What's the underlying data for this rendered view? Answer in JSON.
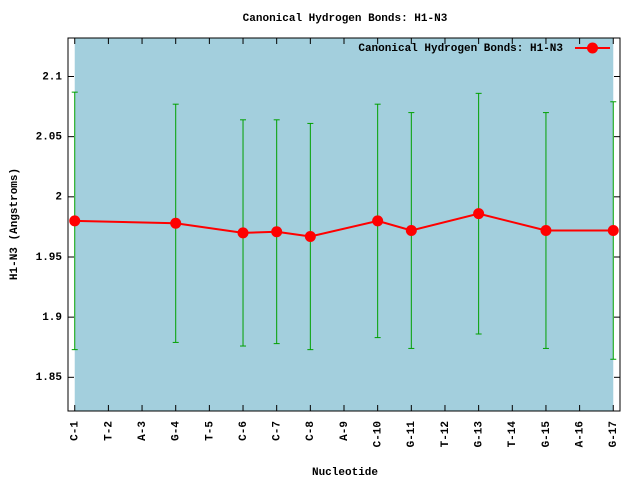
{
  "chart_data": {
    "type": "line",
    "title": "Canonical Hydrogen Bonds: H1-N3",
    "x_label": "Nucleotide",
    "y_label": "H1-N3 (Angstroms)",
    "xlim": [
      0.8,
      17.2
    ],
    "xticks": [
      {
        "value": 1,
        "label": "C-1"
      },
      {
        "value": 2,
        "label": "T-2"
      },
      {
        "value": 3,
        "label": "A-3"
      },
      {
        "value": 4,
        "label": "G-4"
      },
      {
        "value": 5,
        "label": "T-5"
      },
      {
        "value": 6,
        "label": "C-6"
      },
      {
        "value": 7,
        "label": "C-7"
      },
      {
        "value": 8,
        "label": "C-8"
      },
      {
        "value": 9,
        "label": "A-9"
      },
      {
        "value": 10,
        "label": "C-10"
      },
      {
        "value": 11,
        "label": "G-11"
      },
      {
        "value": 12,
        "label": "T-12"
      },
      {
        "value": 13,
        "label": "G-13"
      },
      {
        "value": 14,
        "label": "T-14"
      },
      {
        "value": 15,
        "label": "G-15"
      },
      {
        "value": 16,
        "label": "A-16"
      },
      {
        "value": 17,
        "label": "G-17"
      }
    ],
    "ylim": [
      1.822,
      2.132
    ],
    "yticks": [
      1.85,
      1.9,
      1.95,
      2,
      2.05,
      2.1
    ],
    "background": "#a3cfdd",
    "legend_position": "top-right",
    "series": [
      {
        "name": "Canonical Hydrogen Bonds: H1-N3",
        "color": "#ff0000",
        "error_color": "#00a000",
        "x": [
          1,
          4,
          6,
          7,
          8,
          10,
          11,
          13,
          15,
          17
        ],
        "values": [
          1.98,
          1.978,
          1.97,
          1.971,
          1.967,
          1.98,
          1.972,
          1.986,
          1.972,
          1.972
        ],
        "errors": [
          0.107,
          0.099,
          0.094,
          0.093,
          0.094,
          0.097,
          0.098,
          0.1,
          0.098,
          0.107
        ]
      }
    ]
  }
}
